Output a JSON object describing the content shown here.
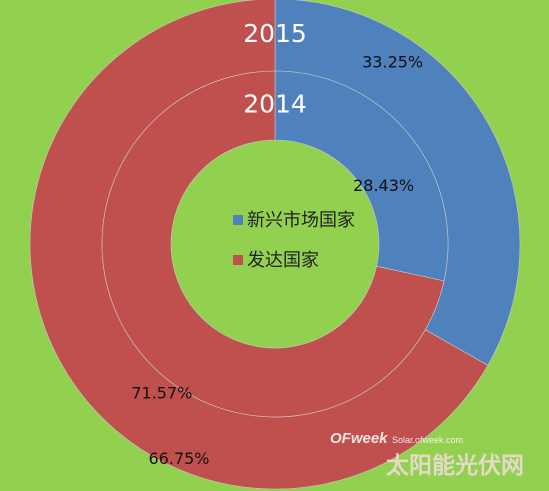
{
  "chart_data": {
    "type": "doughnut",
    "title": "",
    "rings": [
      {
        "name": "2015",
        "label": "2015",
        "segments": [
          {
            "category": "新兴市场国家",
            "value": 33.25,
            "label": "33.25%"
          },
          {
            "category": "发达国家",
            "value": 66.75,
            "label": "66.75%"
          }
        ]
      },
      {
        "name": "2014",
        "label": "2014",
        "segments": [
          {
            "category": "新兴市场国家",
            "value": 28.43,
            "label": "28.43%"
          },
          {
            "category": "发达国家",
            "value": 71.57,
            "label": "71.57%"
          }
        ]
      }
    ],
    "legend": {
      "position": "center",
      "items": [
        {
          "label": "新兴市场国家",
          "color": "#4f81bd"
        },
        {
          "label": "发达国家",
          "color": "#c0504d"
        }
      ]
    },
    "colors": {
      "background": "#92d050",
      "emerging": "#4f81bd",
      "developed": "#c0504d"
    }
  },
  "watermark": {
    "brand": "OFweek",
    "site": "Solar.ofweek.com",
    "subtitle": "太阳能光伏网"
  }
}
